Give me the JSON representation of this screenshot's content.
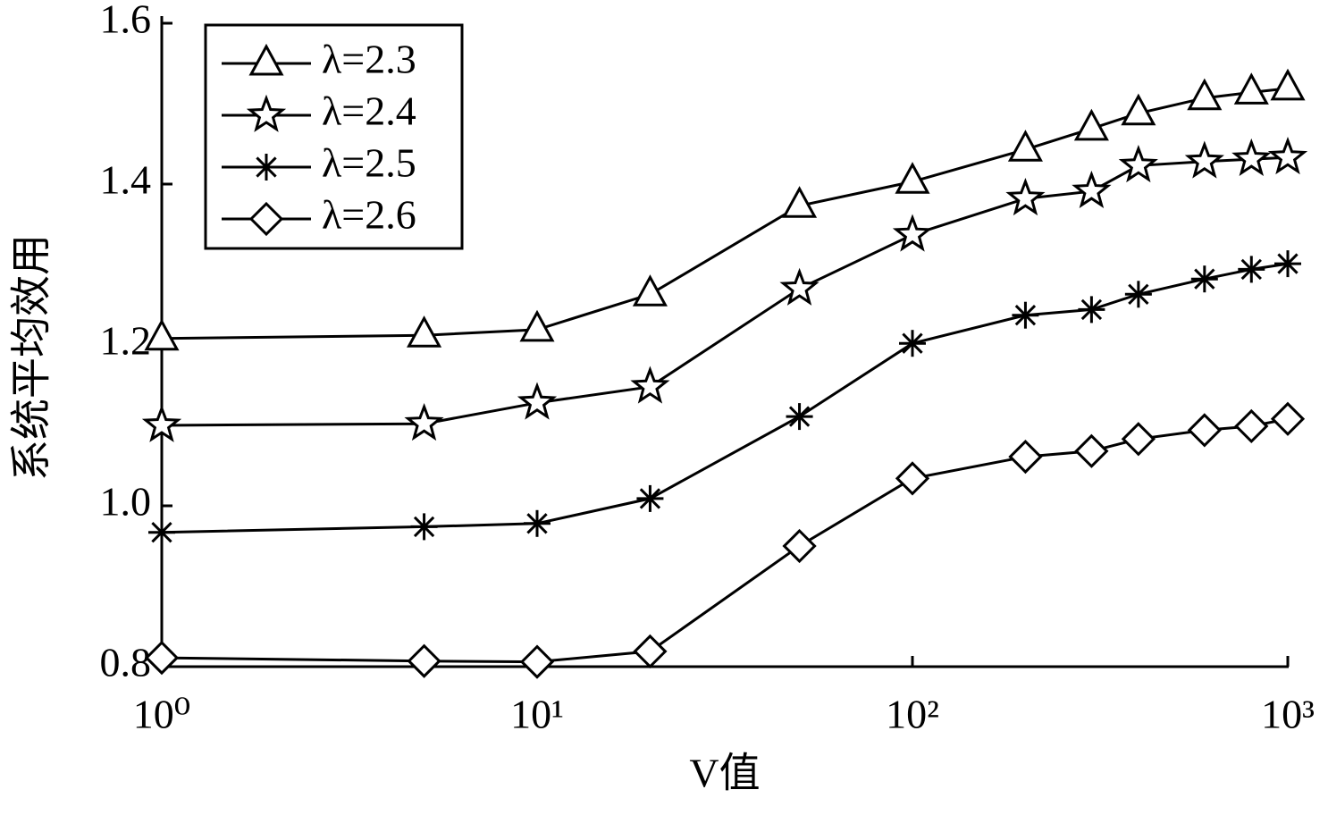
{
  "chart_data": {
    "type": "line",
    "x_label": "V值",
    "y_label": "系统平均效用",
    "x": [
      1,
      5,
      10,
      20,
      50,
      100,
      200,
      300,
      400,
      600,
      800,
      1000
    ],
    "xscale": "log",
    "xlim": [
      1,
      1000
    ],
    "xticks": [
      {
        "value": 1,
        "label": "10⁰"
      },
      {
        "value": 10,
        "label": "10¹"
      },
      {
        "value": 100,
        "label": "10²"
      },
      {
        "value": 1000,
        "label": "10³"
      }
    ],
    "ylim": [
      0.8,
      1.6
    ],
    "yticks": [
      0.8,
      {
        "value": 1,
        "label": "1.0"
      },
      1.2,
      1.4,
      1.6
    ],
    "legend": "upper left",
    "series": [
      {
        "name": "λ=2.3",
        "color": "#000000",
        "marker": "triangle",
        "values": [
          1.208,
          1.212,
          1.219,
          1.263,
          1.373,
          1.403,
          1.443,
          1.469,
          1.488,
          1.507,
          1.514,
          1.519
        ]
      },
      {
        "name": "λ=2.4",
        "color": "#000000",
        "marker": "star",
        "values": [
          1.1,
          1.102,
          1.128,
          1.148,
          1.27,
          1.337,
          1.382,
          1.391,
          1.423,
          1.428,
          1.431,
          1.433
        ]
      },
      {
        "name": "λ=2.5",
        "color": "#000000",
        "marker": "asterisk",
        "values": [
          0.967,
          0.974,
          0.978,
          1.009,
          1.111,
          1.202,
          1.237,
          1.244,
          1.263,
          1.282,
          1.294,
          1.301
        ]
      },
      {
        "name": "λ=2.6",
        "color": "#000000",
        "marker": "diamond",
        "values": [
          0.811,
          0.807,
          0.806,
          0.819,
          0.95,
          1.034,
          1.061,
          1.068,
          1.083,
          1.094,
          1.099,
          1.108
        ]
      }
    ]
  }
}
